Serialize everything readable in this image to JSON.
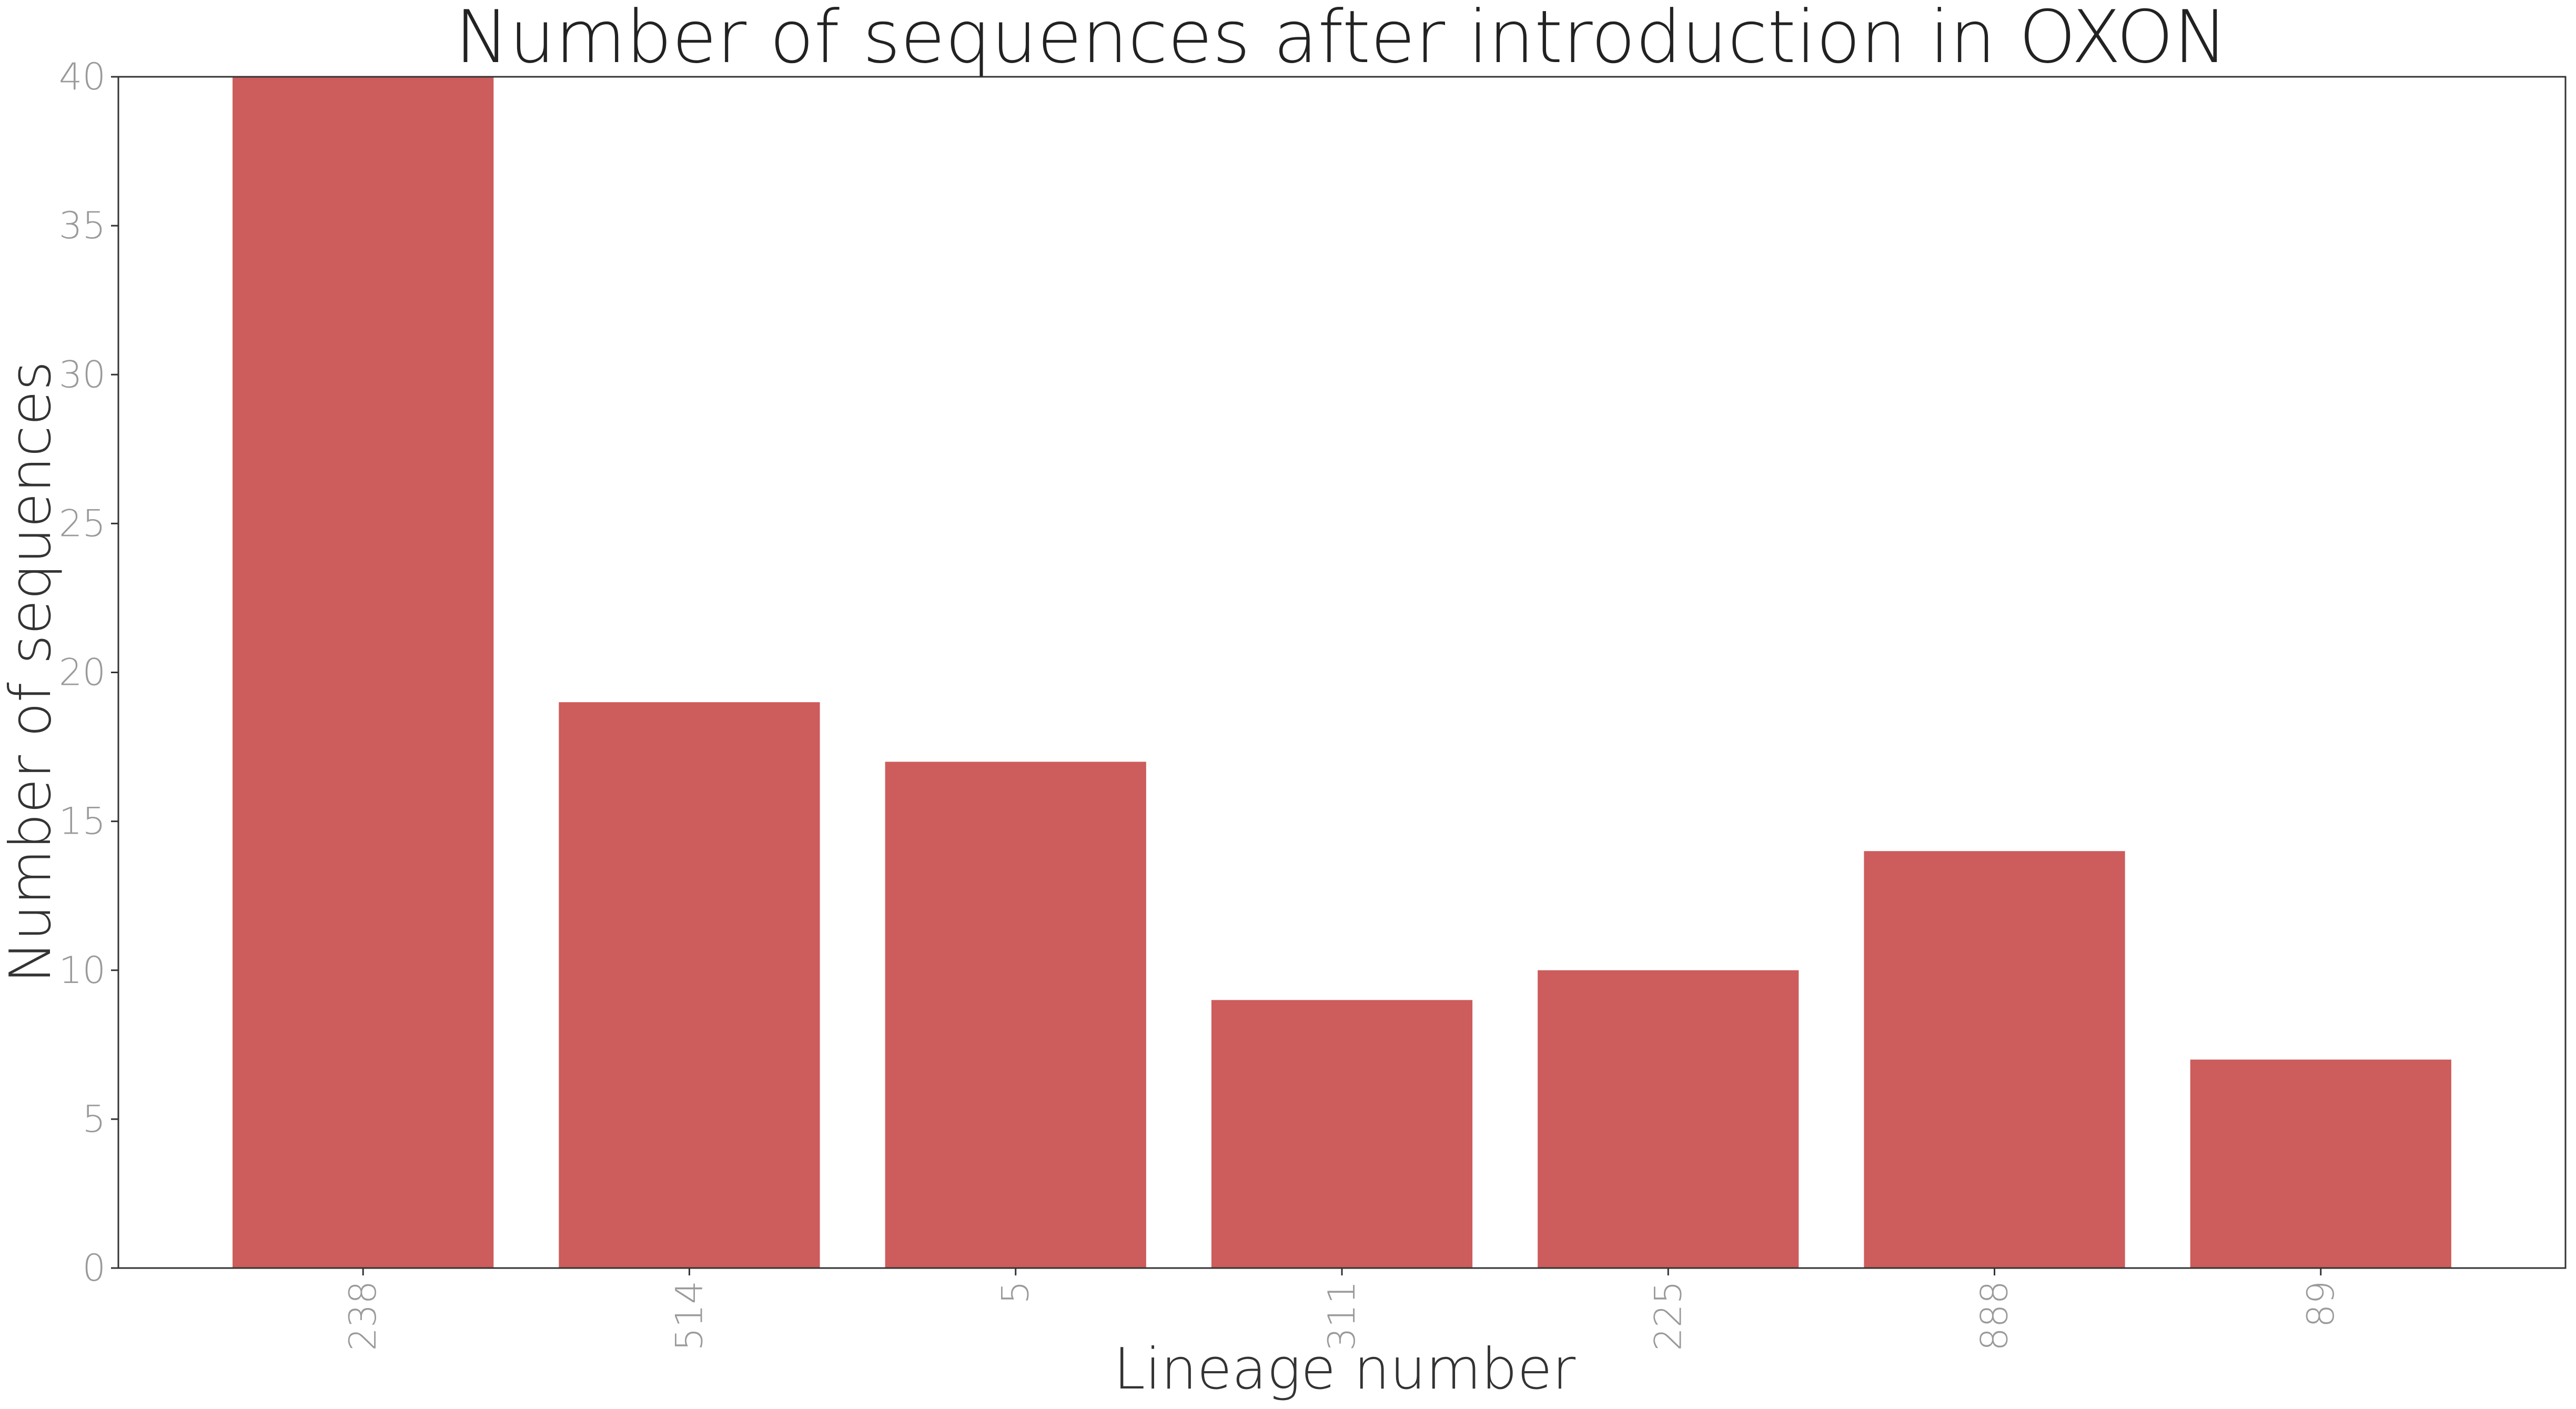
{
  "chart_data": {
    "type": "bar",
    "title": "Number of sequences after introduction in OXON",
    "xlabel": "Lineage number",
    "ylabel": "Number of sequences",
    "categories": [
      "238",
      "514",
      "5",
      "311",
      "225",
      "888",
      "89"
    ],
    "values": [
      40,
      19,
      17,
      9,
      10,
      14,
      7
    ],
    "ylim": [
      0,
      40
    ],
    "yticks": [
      0,
      5,
      10,
      15,
      20,
      25,
      30,
      35,
      40
    ],
    "bar_color": "#cd5c5c",
    "grid": false,
    "legend": "none"
  }
}
